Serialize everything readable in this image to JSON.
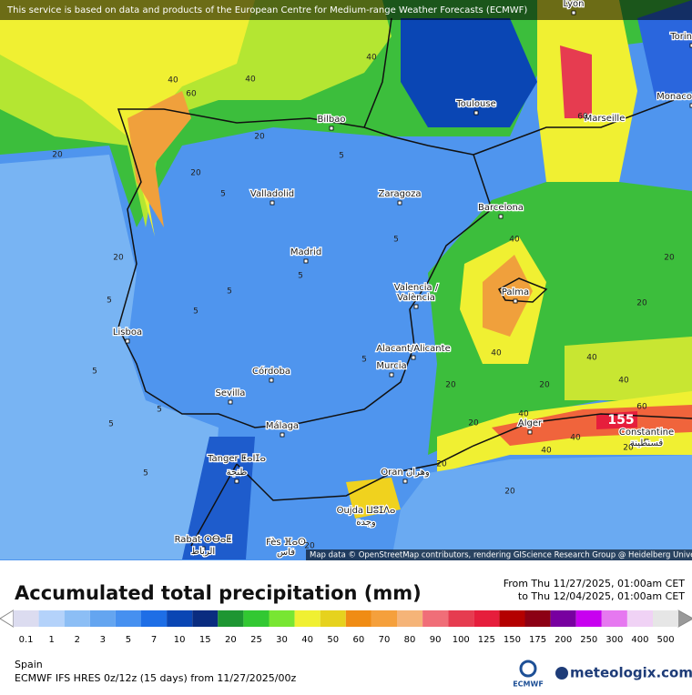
{
  "banner": "This service is based on data and products of the European Centre for Medium-range Weather Forecasts (ECMWF)",
  "cities": [
    "Lyon",
    "Torin",
    "Monaco",
    "Toulouse",
    "Marseille",
    "Bilbao",
    "Valladolid",
    "Zaragoza",
    "Barcelona",
    "Madrid",
    "Valencia /",
    "València",
    "Palma",
    "Lisboa",
    "Alacant/Alicante",
    "Córdoba",
    "Murcia",
    "Sevilla",
    "Málaga",
    "Alger",
    "Constantine",
    "قسنطينة",
    "Tanger ⵟⴰⵏⵊⴰ",
    "طنجة",
    "Oran وهران",
    "Oujda ⵡⵓⵊⴷⴰ",
    "وجدة",
    "Rabat ⵔⴱⴰⵟ",
    "الرباط",
    "Fès ⴼⴰⵙ",
    "فاس"
  ],
  "contour_labels": [
    40,
    40,
    40,
    60,
    60,
    20,
    20,
    20,
    20,
    40,
    20,
    20,
    5,
    5,
    5,
    5,
    5,
    5,
    5,
    5,
    5,
    20,
    40,
    40,
    40,
    40,
    20,
    20,
    40,
    20,
    60,
    40,
    20,
    20,
    5,
    5,
    20,
    5
  ],
  "max_label": "155",
  "attribution": "Map data © OpenStreetMap contributors, rendering GIScience Research Group @ Heidelberg University",
  "title": "Accumulated total precipitation (mm)",
  "period_from": "From Thu 11/27/2025, 01:00am CET",
  "period_to": "to Thu 12/04/2025, 01:00am CET",
  "region": "Spain",
  "model": "ECMWF IFS HRES 0z/12z (15 days) from  11/27/2025/00z",
  "logo_ecmwf": "ECMWF",
  "logo_site": "meteologix.com",
  "legend": {
    "labels": [
      0.1,
      1,
      2,
      3,
      5,
      7,
      10,
      15,
      20,
      25,
      30,
      40,
      50,
      60,
      70,
      80,
      90,
      100,
      125,
      150,
      175,
      200,
      250,
      300,
      400,
      500
    ],
    "colors": [
      "#dcdcf0",
      "#b4d2fa",
      "#8cbef5",
      "#64a5f0",
      "#4690f0",
      "#1e6ee6",
      "#0a46b4",
      "#0a2c80",
      "#1e9632",
      "#32c832",
      "#78e632",
      "#f0f032",
      "#e6d21e",
      "#f08c14",
      "#f5a03c",
      "#f5b478",
      "#f06e78",
      "#e63c50",
      "#e61e3c",
      "#b40000",
      "#8c0014",
      "#7800a0",
      "#c800f0",
      "#e678f0",
      "#f0d2f5",
      "#e6e6e6"
    ]
  }
}
